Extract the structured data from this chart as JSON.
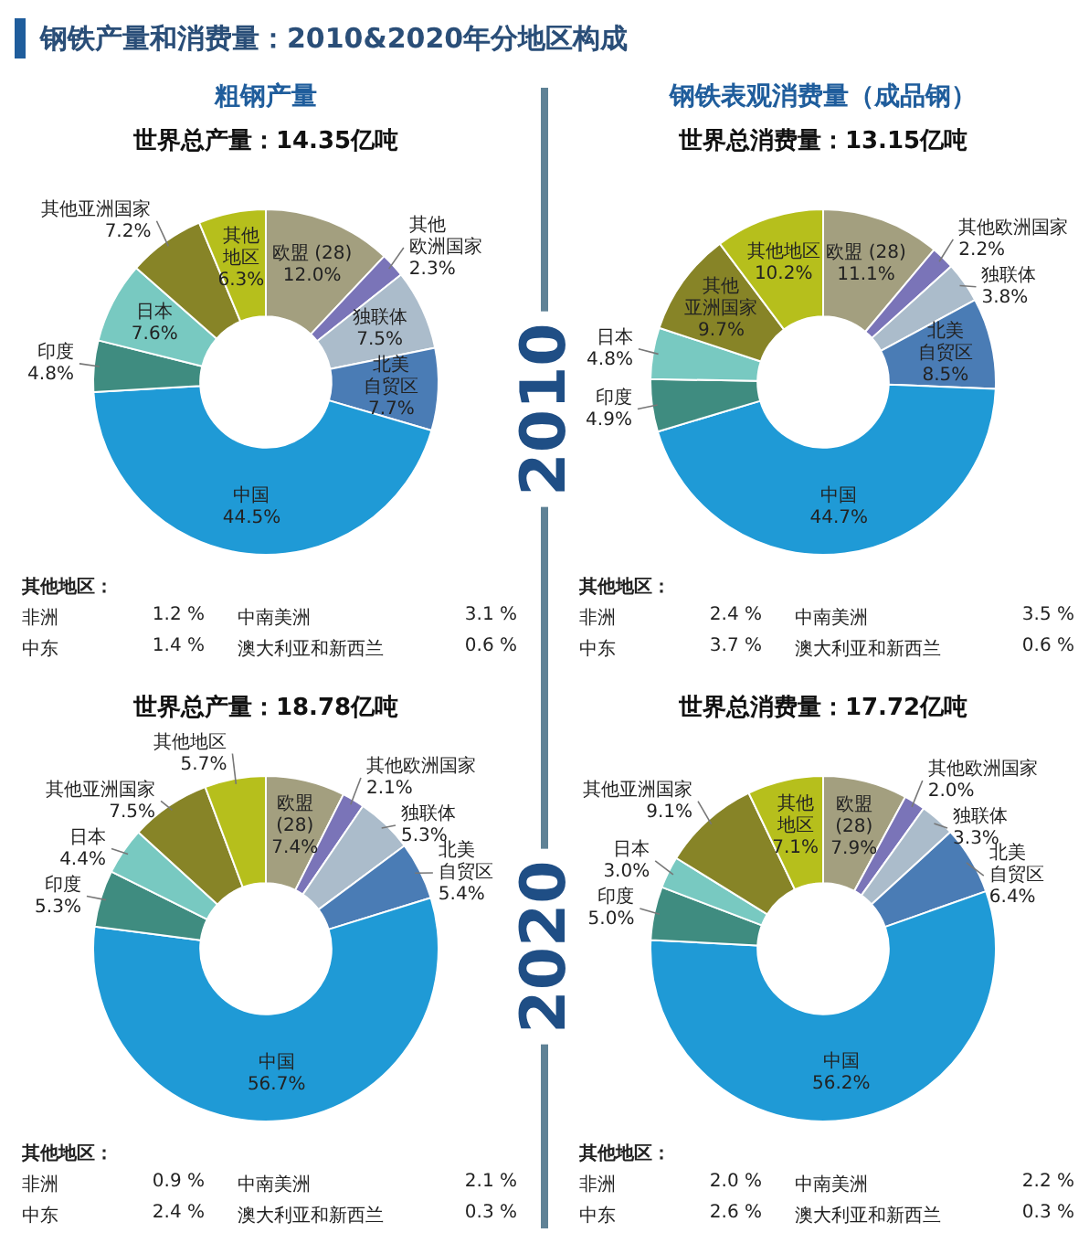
{
  "chart_data": [
    {
      "type": "donut",
      "title": "粗钢产量",
      "subtitle": "世界总产量：14.35亿吨",
      "categories": [
        "欧盟 (28)",
        "其他欧洲国家",
        "独联体",
        "北美自贸区",
        "中国",
        "印度",
        "日本",
        "其他亚洲国家",
        "其他地区"
      ],
      "values": [
        12.0,
        2.3,
        7.5,
        7.7,
        44.5,
        4.8,
        7.6,
        7.2,
        6.3
      ],
      "value_labels": [
        "12.0%",
        "2.3%",
        "7.5%",
        "7.7%",
        "44.5%",
        "4.8%",
        "7.6%",
        "7.2%",
        "6.3%"
      ],
      "colors": [
        "#a39f7f",
        "#7a74b8",
        "#abbccb",
        "#4a7cb5",
        "#1f9ad6",
        "#3f8c80",
        "#78c9c1",
        "#878427",
        "#b6bf1c"
      ],
      "annotations": [
        "其他地区：",
        "非洲",
        "1.2 %",
        "中南美洲",
        "3.1 %",
        "中东",
        "1.4 %",
        "澳大利亚和新西兰",
        "0.6 %",
        "2010",
        "钢铁产量和消费量：2010&2020年分地区构成"
      ]
    },
    {
      "type": "donut",
      "title": "钢铁表观消费量（成品钢）",
      "subtitle": "世界总消费量：13.15亿吨",
      "categories": [
        "欧盟 (28)",
        "其他欧洲国家",
        "独联体",
        "北美自贸区",
        "中国",
        "印度",
        "日本",
        "其他亚洲国家",
        "其他地区"
      ],
      "values": [
        11.1,
        2.2,
        3.8,
        8.5,
        44.7,
        4.9,
        4.8,
        9.7,
        10.2
      ],
      "value_labels": [
        "11.1%",
        "2.2%",
        "3.8%",
        "8.5%",
        "44.7%",
        "4.9%",
        "4.8%",
        "9.7%",
        "10.2%"
      ],
      "colors": [
        "#a39f7f",
        "#7a74b8",
        "#abbccb",
        "#4a7cb5",
        "#1f9ad6",
        "#3f8c80",
        "#78c9c1",
        "#878427",
        "#b6bf1c"
      ],
      "annotations": [
        "其他地区：",
        "非洲",
        "2.4 %",
        "中南美洲",
        "3.5 %",
        "中东",
        "3.7 %",
        "澳大利亚和新西兰",
        "0.6 %"
      ]
    },
    {
      "type": "donut",
      "title": "世界总产量：18.78亿吨",
      "categories": [
        "欧盟 (28)",
        "其他欧洲国家",
        "独联体",
        "北美自贸区",
        "中国",
        "印度",
        "日本",
        "其他亚洲国家",
        "其他地区"
      ],
      "values": [
        7.4,
        2.1,
        5.3,
        5.4,
        56.7,
        5.3,
        4.4,
        7.5,
        5.7
      ],
      "value_labels": [
        "7.4%",
        "2.1%",
        "5.3%",
        "5.4%",
        "56.7%",
        "5.3%",
        "4.4%",
        "7.5%",
        "5.7%"
      ],
      "colors": [
        "#a39f7f",
        "#7a74b8",
        "#abbccb",
        "#4a7cb5",
        "#1f9ad6",
        "#3f8c80",
        "#78c9c1",
        "#878427",
        "#b6bf1c"
      ],
      "annotations": [
        "其他地区：",
        "非洲",
        "0.9 %",
        "中南美洲",
        "2.1 %",
        "中东",
        "2.4 %",
        "澳大利亚和新西兰",
        "0.3 %",
        "2020"
      ]
    },
    {
      "type": "donut",
      "title": "世界总消费量：17.72亿吨",
      "categories": [
        "欧盟 (28)",
        "其他欧洲国家",
        "独联体",
        "北美自贸区",
        "中国",
        "印度",
        "日本",
        "其他亚洲国家",
        "其他地区"
      ],
      "values": [
        7.9,
        2.0,
        3.3,
        6.4,
        56.2,
        5.0,
        3.0,
        9.1,
        7.1
      ],
      "value_labels": [
        "7.9%",
        "2.0%",
        "3.3%",
        "6.4%",
        "56.2%",
        "5.0%",
        "3.0%",
        "9.1%",
        "7.1%"
      ],
      "colors": [
        "#a39f7f",
        "#7a74b8",
        "#abbccb",
        "#4a7cb5",
        "#1f9ad6",
        "#3f8c80",
        "#78c9c1",
        "#878427",
        "#b6bf1c"
      ],
      "annotations": [
        "其他地区：",
        "非洲",
        "2.0 %",
        "中南美洲",
        "2.2 %",
        "中东",
        "2.6 %",
        "澳大利亚和新西兰",
        "0.3 %"
      ]
    }
  ]
}
